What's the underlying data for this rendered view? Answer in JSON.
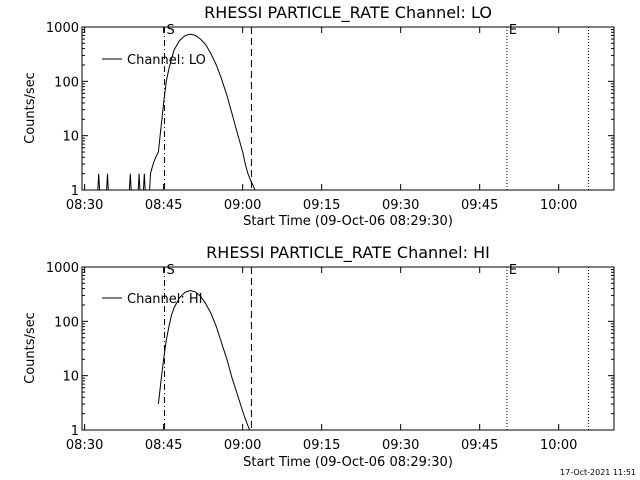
{
  "footer": {
    "timestamp": "17-Oct-2021 11:51"
  },
  "chart_data": [
    {
      "type": "line",
      "title": "RHESSI PARTICLE_RATE Channel: LO",
      "xlabel": "Start Time (09-Oct-06 08:29:30)",
      "ylabel": "Counts/sec",
      "y_scale": "log",
      "ylim": [
        1,
        1000
      ],
      "xlim": [
        "08:29:30",
        "10:10:30"
      ],
      "x_tick_labels": [
        "08:30",
        "08:45",
        "09:00",
        "09:15",
        "09:30",
        "09:45",
        "10:00"
      ],
      "y_tick_labels": [
        "1",
        "10",
        "100",
        "1000"
      ],
      "legend": {
        "placement": "top-left",
        "entries": [
          "Channel: LO"
        ]
      },
      "markers": [
        {
          "time": "08:45:10",
          "style": "dash-dot",
          "label": "S"
        },
        {
          "time": "09:01:40",
          "style": "dashed",
          "label": ""
        },
        {
          "time": "09:50:10",
          "style": "dotted",
          "label": "E"
        },
        {
          "time": "10:05:40",
          "style": "dotted",
          "label": ""
        }
      ],
      "series": [
        {
          "name": "Channel: LO",
          "x": [
            "08:32:30",
            "08:32:40",
            "08:32:50",
            "08:34:10",
            "08:34:20",
            "08:34:30",
            "08:38:30",
            "08:38:40",
            "08:38:50",
            "08:40:10",
            "08:40:20",
            "08:40:30",
            "08:40:40",
            "08:41:10",
            "08:41:20",
            "08:41:30",
            "08:41:40",
            "08:42:20",
            "08:42:30",
            "08:43:00",
            "08:43:30",
            "08:44:00",
            "08:44:20",
            "08:44:40",
            "08:45:00",
            "08:45:30",
            "08:46:00",
            "08:46:30",
            "08:47:00",
            "08:48:00",
            "08:49:00",
            "08:50:00",
            "08:51:00",
            "08:52:00",
            "08:53:00",
            "08:54:00",
            "08:55:00",
            "08:56:00",
            "08:57:00",
            "08:58:00",
            "08:59:00",
            "09:00:00",
            "09:00:30",
            "09:01:00",
            "09:01:30",
            "09:02:00",
            "09:02:20"
          ],
          "y": [
            1,
            2,
            1,
            1,
            2,
            1,
            1,
            2,
            1,
            1,
            2,
            1,
            1,
            1,
            2,
            1,
            1,
            1,
            2,
            3,
            4,
            5,
            10,
            20,
            40,
            100,
            170,
            260,
            380,
            560,
            690,
            740,
            700,
            600,
            470,
            320,
            200,
            110,
            55,
            25,
            11,
            5,
            3,
            2,
            1.5,
            1.2,
            1
          ]
        }
      ]
    },
    {
      "type": "line",
      "title": "RHESSI PARTICLE_RATE Channel: HI",
      "xlabel": "Start Time (09-Oct-06 08:29:30)",
      "ylabel": "Counts/sec",
      "y_scale": "log",
      "ylim": [
        1,
        1000
      ],
      "xlim": [
        "08:29:30",
        "10:10:30"
      ],
      "x_tick_labels": [
        "08:30",
        "08:45",
        "09:00",
        "09:15",
        "09:30",
        "09:45",
        "10:00"
      ],
      "y_tick_labels": [
        "1",
        "10",
        "100",
        "1000"
      ],
      "legend": {
        "placement": "top-left",
        "entries": [
          "Channel: HI"
        ]
      },
      "markers": [
        {
          "time": "08:45:10",
          "style": "dash-dot",
          "label": "S"
        },
        {
          "time": "09:01:40",
          "style": "dashed",
          "label": ""
        },
        {
          "time": "09:50:10",
          "style": "dotted",
          "label": "E"
        },
        {
          "time": "10:05:40",
          "style": "dotted",
          "label": ""
        }
      ],
      "series": [
        {
          "name": "Channel: HI",
          "x": [
            "08:44:00",
            "08:44:30",
            "08:45:00",
            "08:45:30",
            "08:46:00",
            "08:46:30",
            "08:47:00",
            "08:48:00",
            "08:49:00",
            "08:50:00",
            "08:51:00",
            "08:52:00",
            "08:53:00",
            "08:54:00",
            "08:55:00",
            "08:56:00",
            "08:57:00",
            "08:58:00",
            "08:59:00",
            "09:00:00",
            "09:00:30",
            "09:01:00",
            "09:01:20"
          ],
          "y": [
            3,
            8,
            20,
            45,
            80,
            130,
            180,
            270,
            340,
            370,
            350,
            290,
            210,
            140,
            80,
            40,
            20,
            9,
            4.5,
            2.2,
            1.6,
            1.2,
            1
          ]
        }
      ]
    }
  ]
}
